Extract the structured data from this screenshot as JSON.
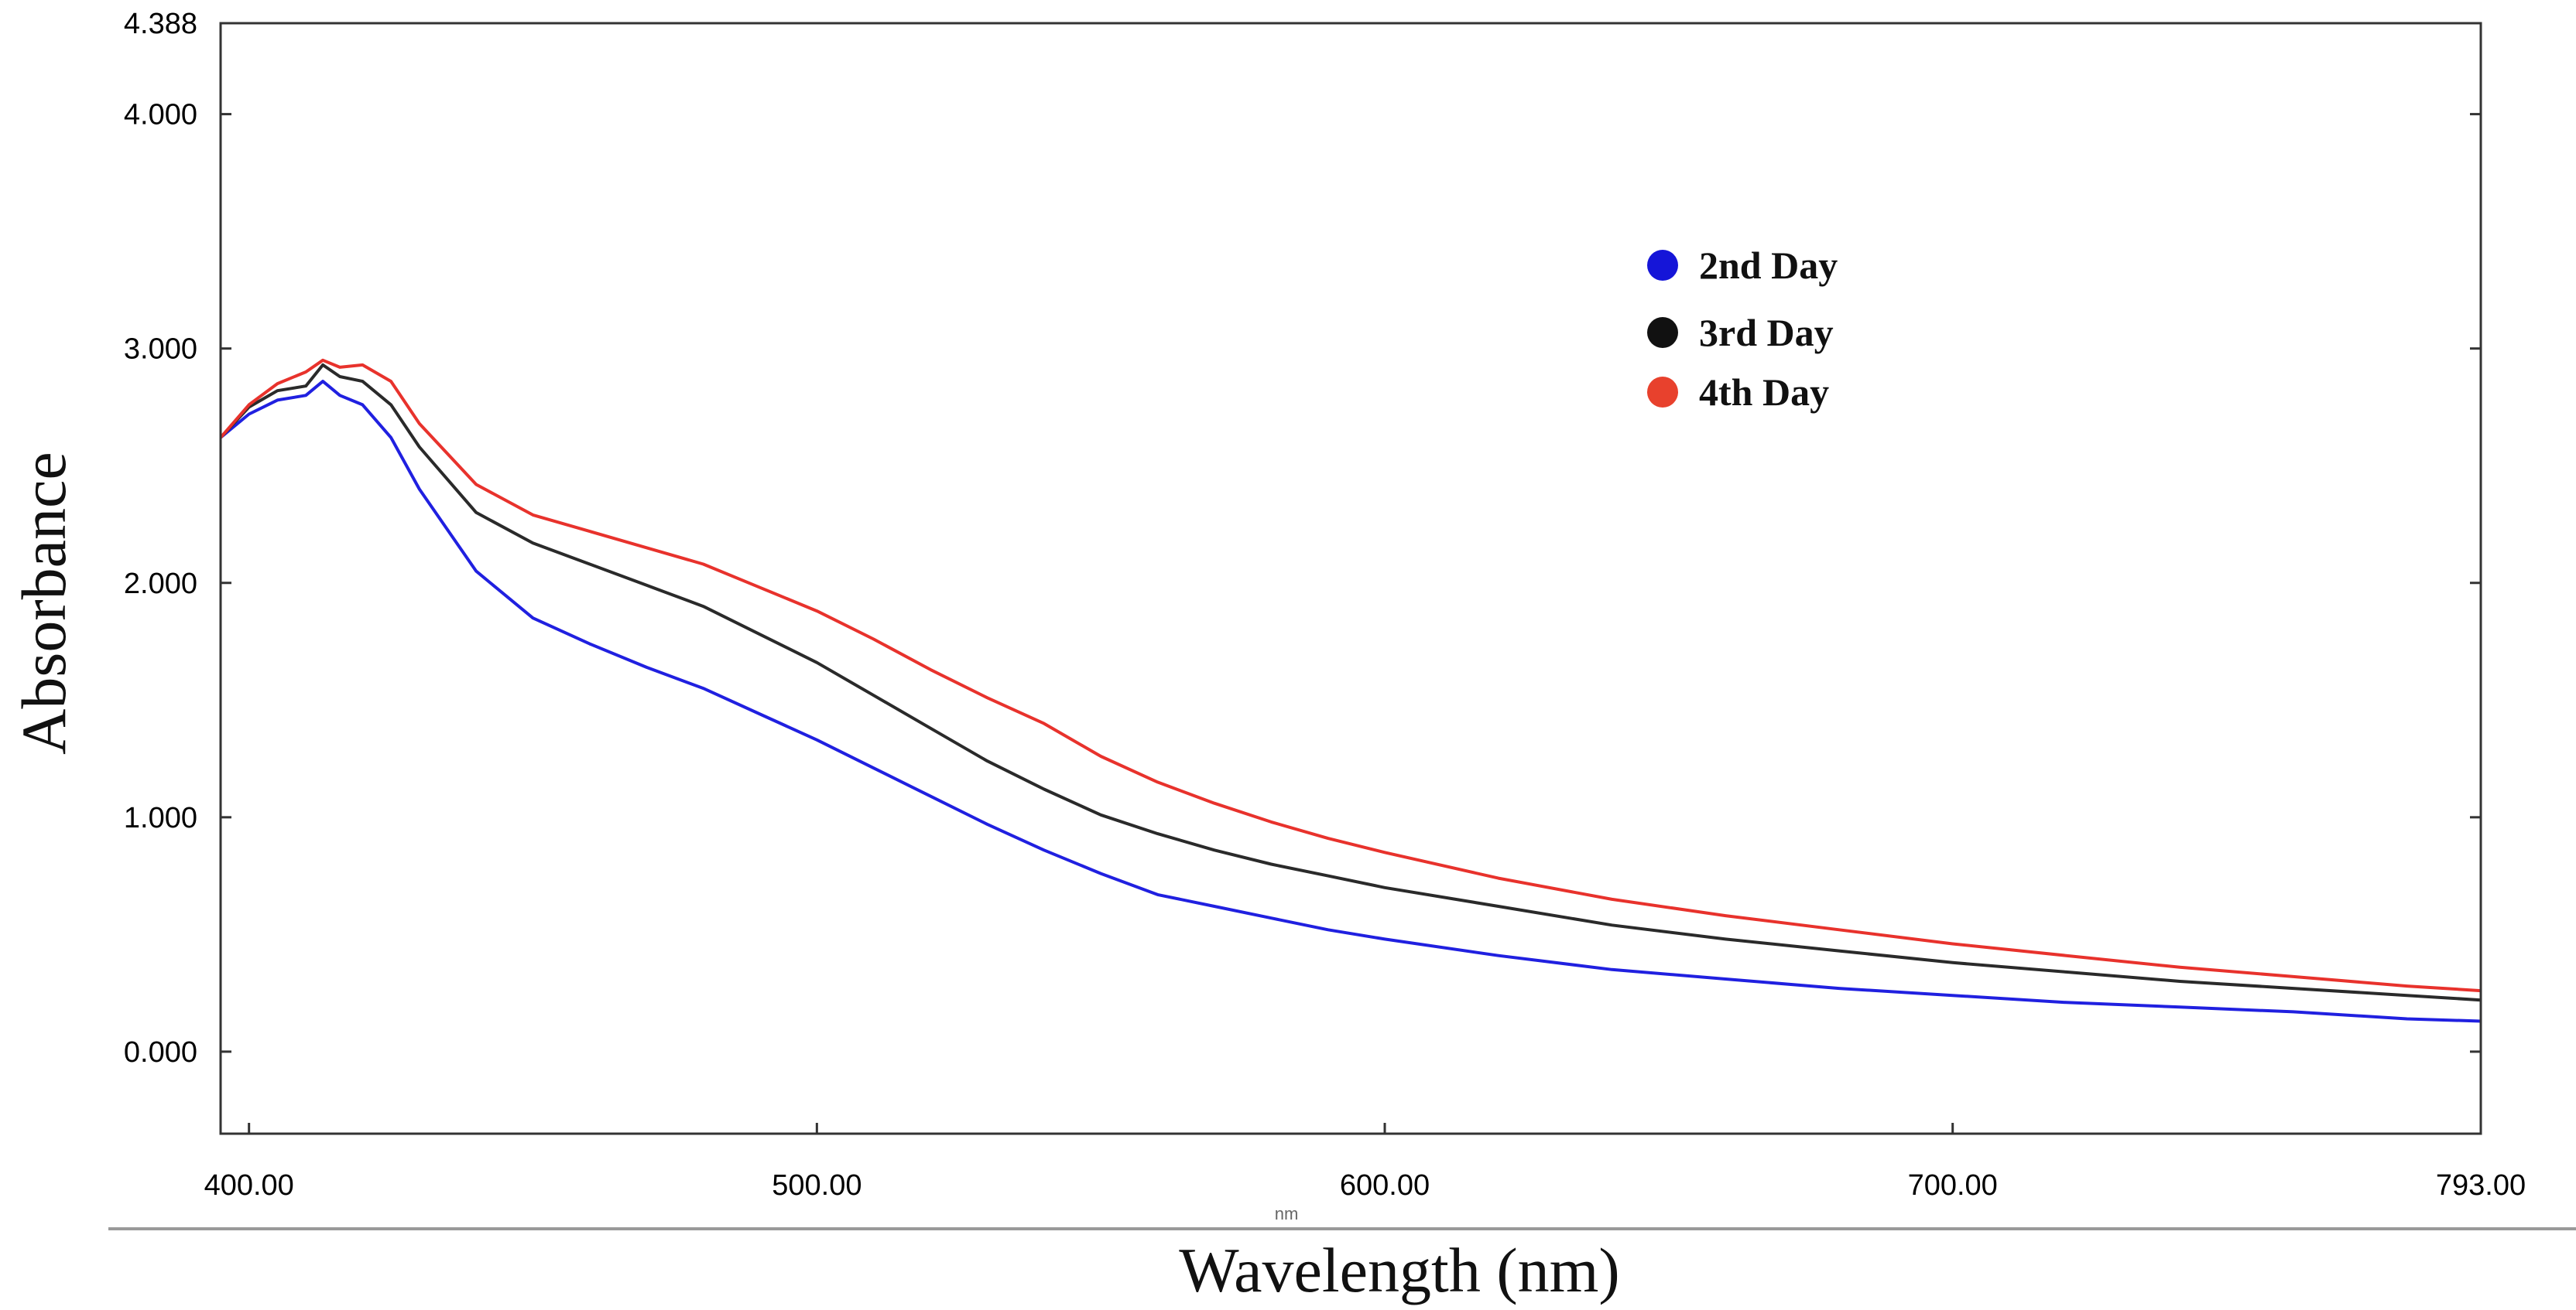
{
  "chart_data": {
    "type": "line",
    "title": "",
    "xlabel": "Wavelength (nm)",
    "ylabel": "Absorbance",
    "xlim": [
      395,
      793
    ],
    "ylim": [
      -0.35,
      4.388
    ],
    "x_ticks": [
      {
        "value": 400,
        "label": "400.00"
      },
      {
        "value": 500,
        "label": "500.00"
      },
      {
        "value": 600,
        "label": "600.00"
      },
      {
        "value": 700,
        "label": "700.00"
      },
      {
        "value": 793,
        "label": "793.00"
      }
    ],
    "y_ticks": [
      {
        "value": 0,
        "label": "0.000"
      },
      {
        "value": 1,
        "label": "1.000"
      },
      {
        "value": 2,
        "label": "2.000"
      },
      {
        "value": 3,
        "label": "3.000"
      },
      {
        "value": 4,
        "label": "4.000"
      },
      {
        "value": 4.388,
        "label": "4.388"
      }
    ],
    "x_unit_note": "nm",
    "series": [
      {
        "name": "2nd Day",
        "color": "#2020e0",
        "marker_color": "#1515d8",
        "x": [
          395,
          400,
          405,
          410,
          413,
          416,
          420,
          425,
          430,
          440,
          450,
          460,
          470,
          480,
          490,
          500,
          510,
          520,
          530,
          540,
          550,
          560,
          570,
          580,
          590,
          600,
          620,
          640,
          660,
          680,
          700,
          720,
          740,
          760,
          780,
          793
        ],
        "y": [
          2.62,
          2.72,
          2.78,
          2.8,
          2.86,
          2.8,
          2.76,
          2.62,
          2.4,
          2.05,
          1.85,
          1.74,
          1.64,
          1.55,
          1.44,
          1.33,
          1.21,
          1.09,
          0.97,
          0.86,
          0.76,
          0.67,
          0.62,
          0.57,
          0.52,
          0.48,
          0.41,
          0.35,
          0.31,
          0.27,
          0.24,
          0.21,
          0.19,
          0.17,
          0.14,
          0.13
        ]
      },
      {
        "name": "3rd Day",
        "color": "#2a2a2a",
        "marker_color": "#111111",
        "x": [
          395,
          400,
          405,
          410,
          413,
          416,
          420,
          425,
          430,
          440,
          450,
          460,
          470,
          480,
          490,
          500,
          510,
          520,
          530,
          540,
          550,
          560,
          570,
          580,
          590,
          600,
          620,
          640,
          660,
          680,
          700,
          720,
          740,
          760,
          780,
          793
        ],
        "y": [
          2.62,
          2.75,
          2.82,
          2.84,
          2.93,
          2.88,
          2.86,
          2.76,
          2.58,
          2.3,
          2.17,
          2.08,
          1.99,
          1.9,
          1.78,
          1.66,
          1.52,
          1.38,
          1.24,
          1.12,
          1.01,
          0.93,
          0.86,
          0.8,
          0.75,
          0.7,
          0.62,
          0.54,
          0.48,
          0.43,
          0.38,
          0.34,
          0.3,
          0.27,
          0.24,
          0.22
        ]
      },
      {
        "name": "4th Day",
        "color": "#e8322c",
        "marker_color": "#e8412d",
        "x": [
          395,
          400,
          405,
          410,
          413,
          416,
          420,
          425,
          430,
          440,
          450,
          460,
          470,
          480,
          490,
          500,
          510,
          520,
          530,
          540,
          550,
          560,
          570,
          580,
          590,
          600,
          620,
          640,
          660,
          680,
          700,
          720,
          740,
          760,
          780,
          793
        ],
        "y": [
          2.62,
          2.76,
          2.85,
          2.9,
          2.95,
          2.92,
          2.93,
          2.86,
          2.68,
          2.42,
          2.29,
          2.22,
          2.15,
          2.08,
          1.98,
          1.88,
          1.76,
          1.63,
          1.51,
          1.4,
          1.26,
          1.15,
          1.06,
          0.98,
          0.91,
          0.85,
          0.74,
          0.65,
          0.58,
          0.52,
          0.46,
          0.41,
          0.36,
          0.32,
          0.28,
          0.26
        ]
      }
    ],
    "legend": {
      "position": "top-center-right"
    },
    "grid": false
  }
}
